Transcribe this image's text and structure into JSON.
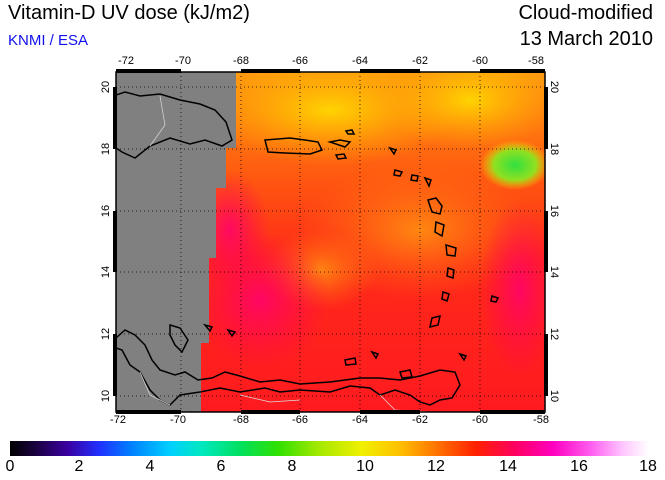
{
  "header": {
    "title": "Vitamin-D UV dose (kJ/m2)",
    "source": "KNMI / ESA",
    "product": "Cloud-modified",
    "date": "13 March 2010"
  },
  "map": {
    "lon_range": [
      -72,
      -58
    ],
    "lat_range": [
      9.5,
      20.5
    ],
    "lon_ticks": [
      "-72",
      "-70",
      "-68",
      "-66",
      "-64",
      "-62",
      "-60",
      "-58"
    ],
    "lat_ticks": [
      "10",
      "12",
      "14",
      "16",
      "18",
      "20"
    ],
    "no_data_color": "#808080",
    "gridlines": "dotted"
  },
  "colorbar": {
    "labels": [
      "0",
      "2",
      "4",
      "6",
      "8",
      "10",
      "12",
      "14",
      "16",
      "18"
    ],
    "min": 0,
    "max": 18
  }
}
